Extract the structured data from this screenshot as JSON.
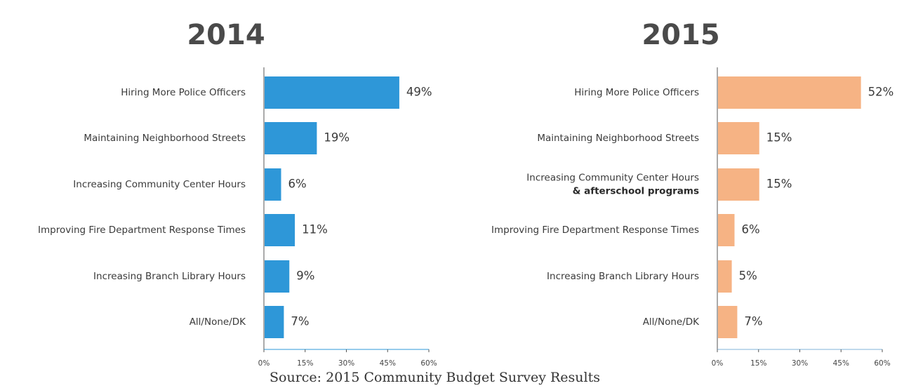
{
  "source": "Source: 2015 Community Budget Survey Results",
  "chart_data": [
    {
      "type": "bar",
      "orientation": "horizontal",
      "title": "2014",
      "color": "#2e97d8",
      "xlim": [
        0,
        60
      ],
      "xticks": [
        "0%",
        "15%",
        "30%",
        "45%",
        "60%"
      ],
      "categories": [
        [
          "Hiring More Police Officers"
        ],
        [
          "Maintaining Neighborhood Streets"
        ],
        [
          "Increasing Community Center Hours"
        ],
        [
          "Improving Fire Department Response Times"
        ],
        [
          "Increasing Branch Library Hours"
        ],
        [
          "All/None/DK"
        ]
      ],
      "values": [
        49,
        19,
        6,
        11,
        9,
        7
      ],
      "value_labels": [
        "49%",
        "19%",
        "6%",
        "11%",
        "9%",
        "7%"
      ]
    },
    {
      "type": "bar",
      "orientation": "horizontal",
      "title": "2015",
      "color": "#f6b384",
      "xlim": [
        0,
        60
      ],
      "xticks": [
        "0%",
        "15%",
        "30%",
        "45%",
        "60%"
      ],
      "categories": [
        [
          "Hiring More Police Officers"
        ],
        [
          "Maintaining Neighborhood Streets"
        ],
        [
          "Increasing Community Center Hours",
          "& afterschool programs"
        ],
        [
          "Improving Fire Department Response Times"
        ],
        [
          "Increasing Branch Library Hours"
        ],
        [
          "All/None/DK"
        ]
      ],
      "bold_lines": [
        "& afterschool programs"
      ],
      "values": [
        52,
        15,
        15,
        6,
        5,
        7
      ],
      "value_labels": [
        "52%",
        "15%",
        "15%",
        "6%",
        "5%",
        "7%"
      ]
    }
  ]
}
